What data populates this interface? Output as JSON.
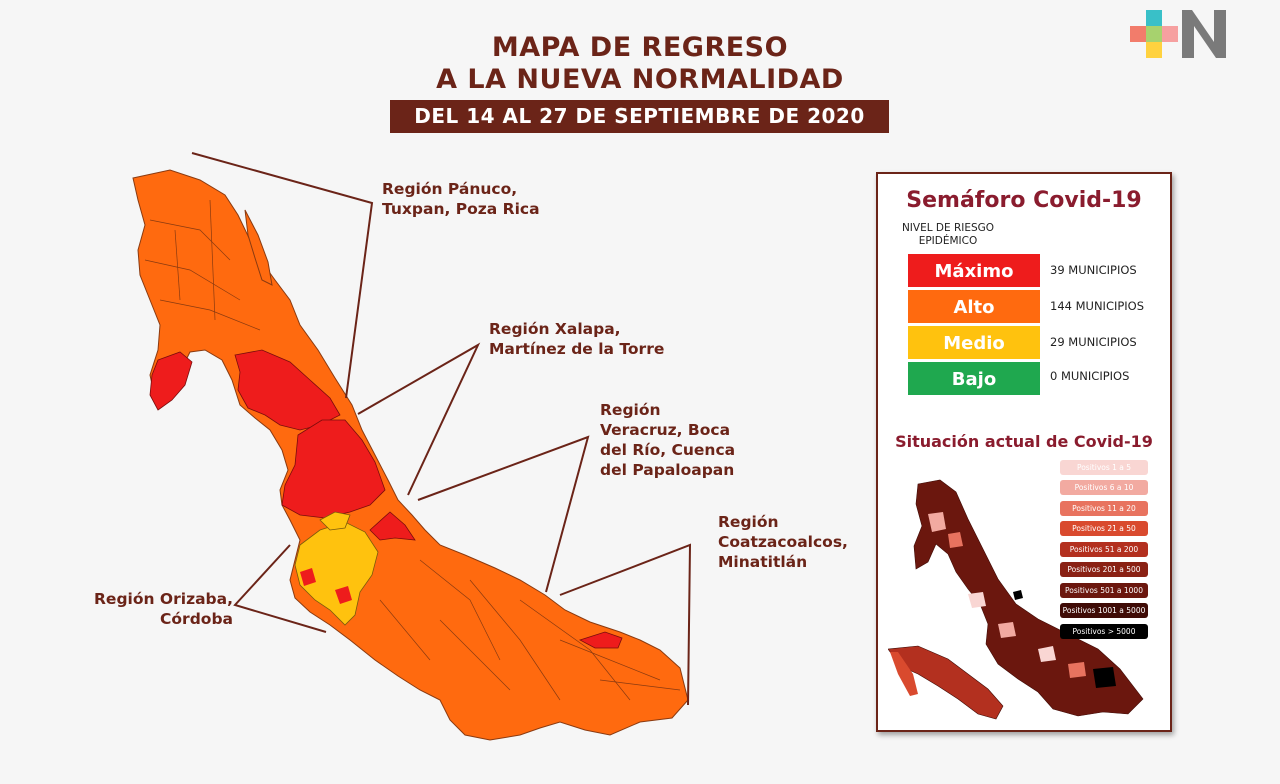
{
  "header": {
    "title_line1": "MAPA DE REGRESO",
    "title_line2": "A LA NUEVA NORMALIDAD",
    "dates": "DEL 14 AL 27 DE SEPTIEMBRE DE 2020"
  },
  "logo": {
    "icon": "plus-n-logo-icon",
    "text": "N"
  },
  "regions": [
    {
      "lines": [
        "Región Pánuco,",
        "Tuxpan, Poza Rica"
      ]
    },
    {
      "lines": [
        "Región Xalapa,",
        "Martínez de la Torre"
      ]
    },
    {
      "lines": [
        "Región",
        "Veracruz, Boca",
        "del Río, Cuenca",
        "del Papaloapan"
      ]
    },
    {
      "lines": [
        "Región",
        "Coatzacoalcos,",
        "Minatitlán"
      ]
    },
    {
      "lines": [
        "Región Orizaba,",
        "Córdoba"
      ]
    }
  ],
  "semaforo": {
    "title": "Semáforo Covid-19",
    "risk_header_line1": "NIVEL DE RIESGO",
    "risk_header_line2": "EPIDÉMICO",
    "levels": [
      {
        "label": "Máximo",
        "count": "39 MUNICIPIOS",
        "color": "#ee1c1c"
      },
      {
        "label": "Alto",
        "count": "144 MUNICIPIOS",
        "color": "#ff6a0f"
      },
      {
        "label": "Medio",
        "count": "29 MUNICIPIOS",
        "color": "#ffc20e"
      },
      {
        "label": "Bajo",
        "count": "0 MUNICIPIOS",
        "color": "#1fa84f"
      }
    ]
  },
  "situacion": {
    "title": "Situación actual de Covid-19",
    "legend": [
      {
        "label": "Positivos 1 a 5",
        "color": "#f9d6d3",
        "text_color": "#ffffff"
      },
      {
        "label": "Positivos 6 a 10",
        "color": "#f2aaa1",
        "text_color": "#ffffff"
      },
      {
        "label": "Positivos 11 a 20",
        "color": "#e8735f",
        "text_color": "#ffffff"
      },
      {
        "label": "Positivos 21 a 50",
        "color": "#d94a2e",
        "text_color": "#ffffff"
      },
      {
        "label": "Positivos 51 a 200",
        "color": "#b3301f",
        "text_color": "#ffffff"
      },
      {
        "label": "Positivos 201 a 500",
        "color": "#8a2114",
        "text_color": "#ffffff"
      },
      {
        "label": "Positivos 501 a 1000",
        "color": "#6b170e",
        "text_color": "#ffffff"
      },
      {
        "label": "Positivos 1001 a 5000",
        "color": "#3f0b06",
        "text_color": "#ffffff"
      },
      {
        "label": "Positivos > 5000",
        "color": "#000000",
        "text_color": "#ffffff"
      }
    ]
  },
  "colors": {
    "accent": "#6b2418",
    "max": "#ee1c1c",
    "high": "#ff6a0f",
    "medium": "#ffc20e",
    "low": "#1fa84f"
  }
}
